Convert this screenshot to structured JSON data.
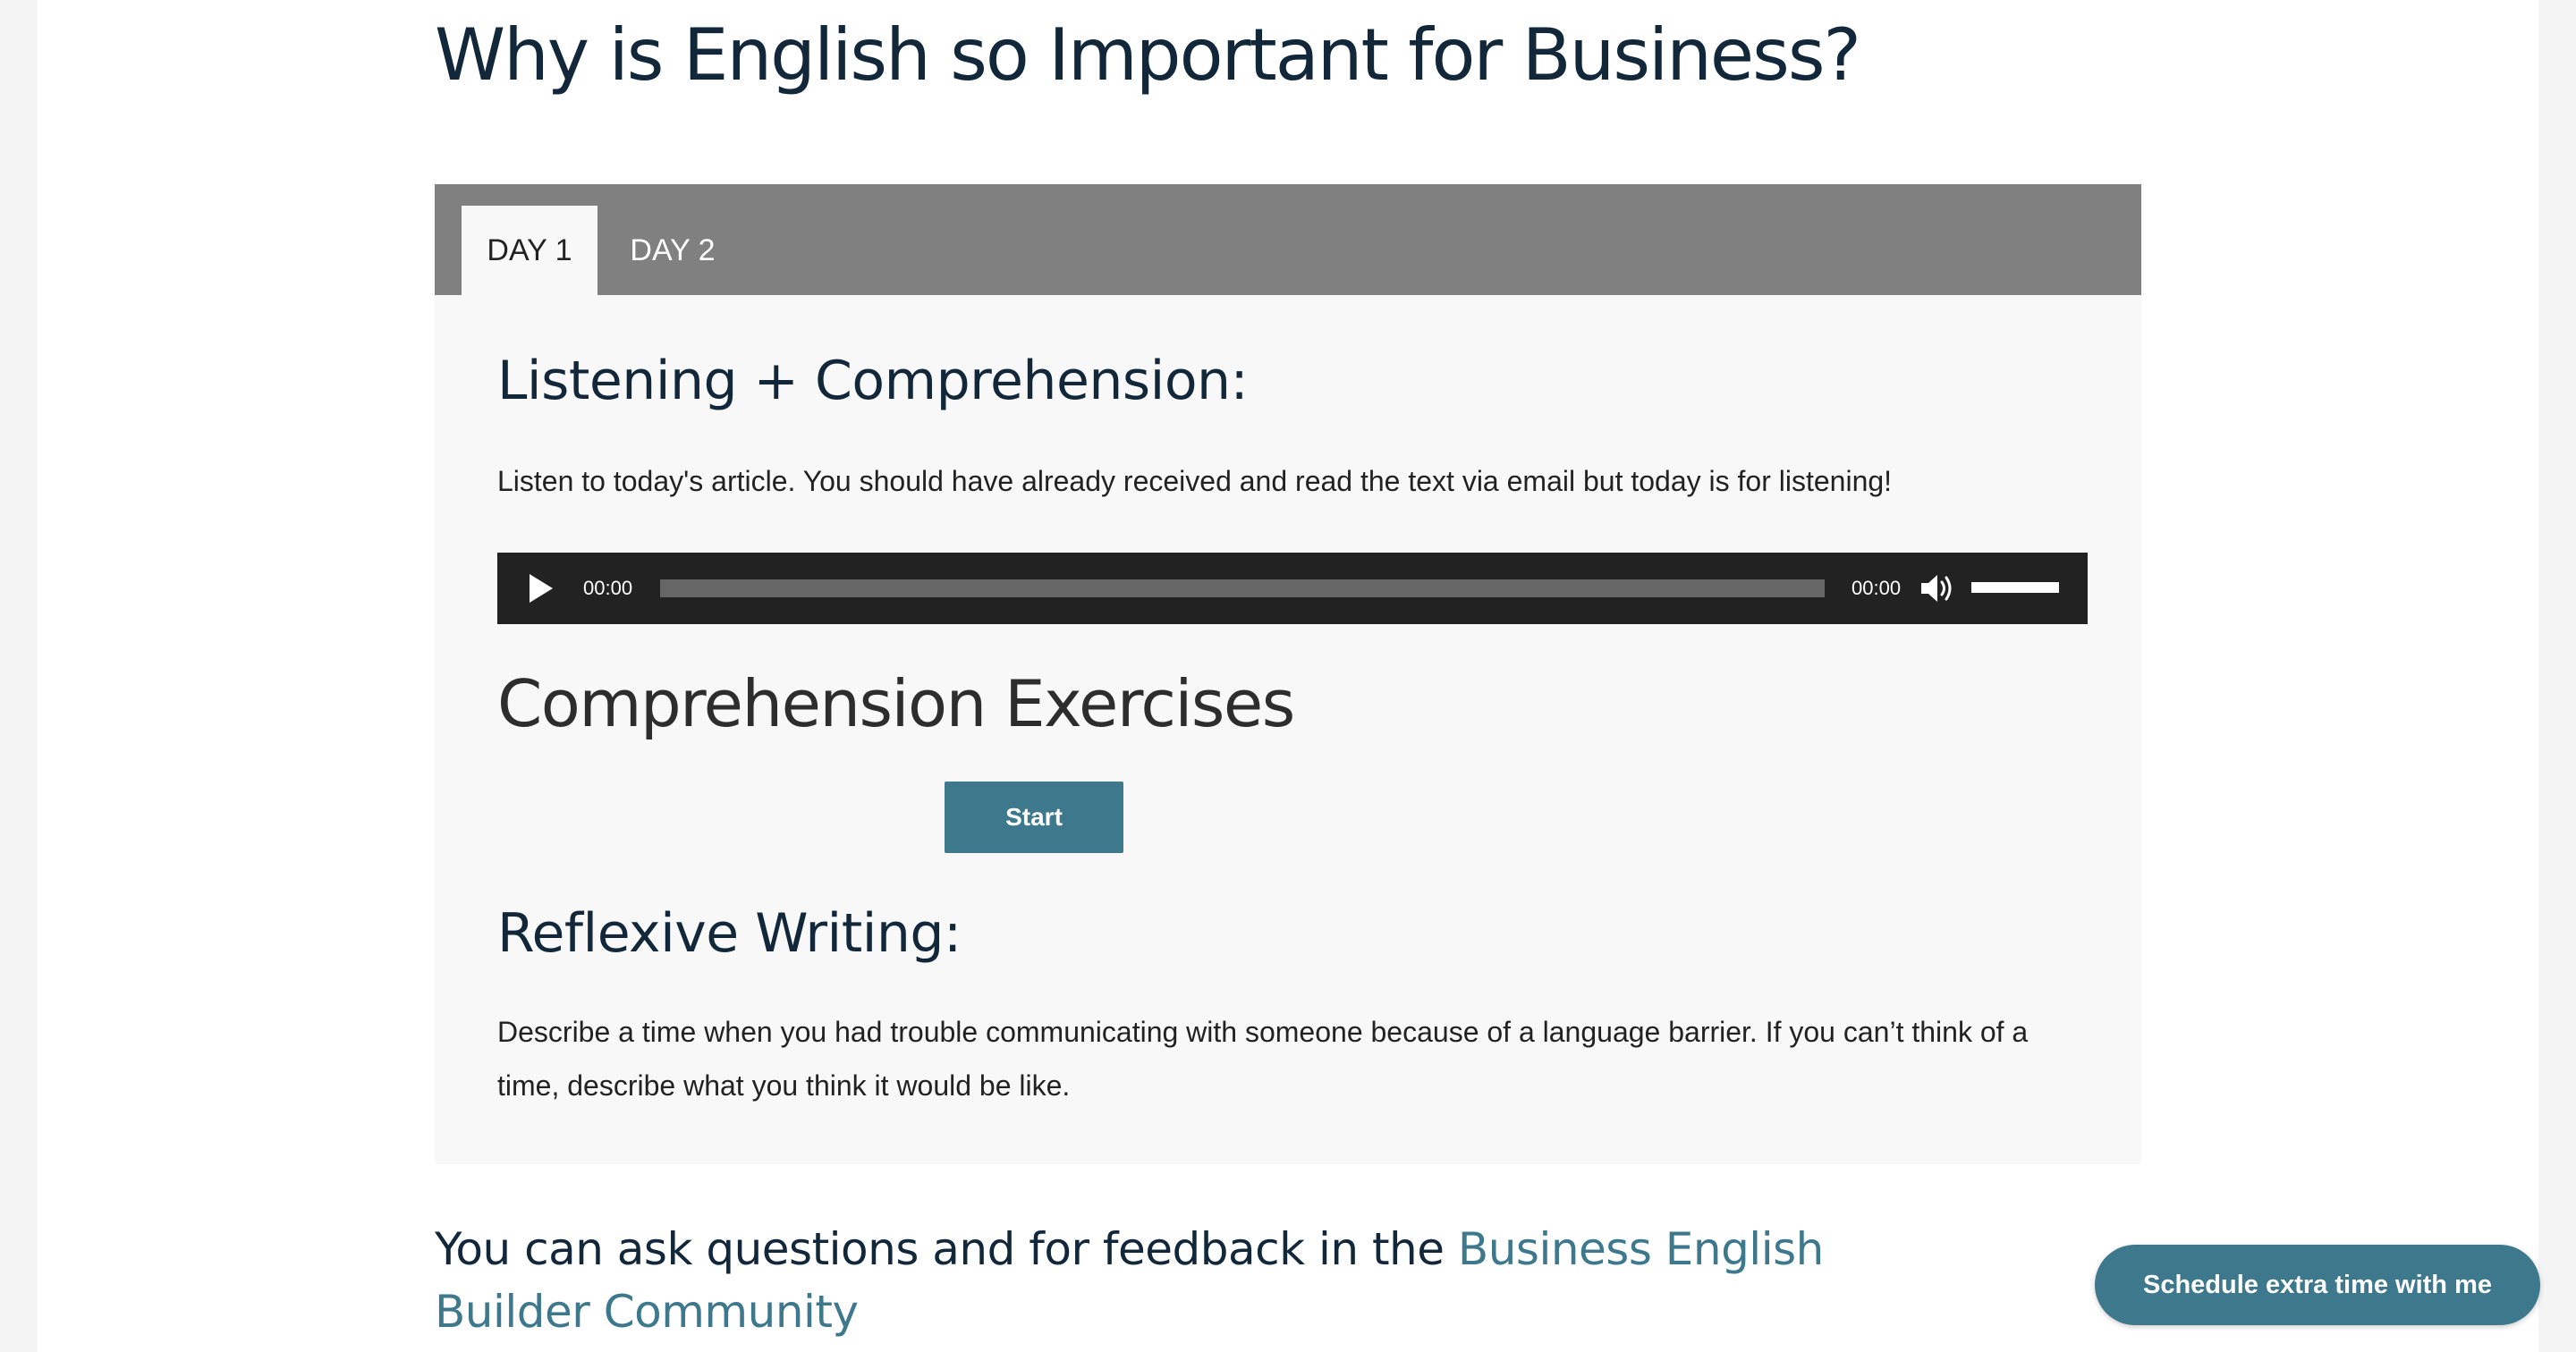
{
  "page": {
    "title": "Why is English so Important for Business?"
  },
  "tabs": [
    {
      "label": "DAY 1",
      "active": true
    },
    {
      "label": "DAY 2",
      "active": false
    }
  ],
  "listening": {
    "heading": "Listening + Comprehension:",
    "description": "Listen to today's article. You should have already received and read the text via email but today is for listening!"
  },
  "audio_player": {
    "current_time": "00:00",
    "duration": "00:00",
    "progress": 0,
    "volume": 1.0
  },
  "exercises": {
    "heading": "Comprehension Exercises",
    "start_label": "Start"
  },
  "reflexive": {
    "heading": "Reflexive Writing:",
    "prompt": "Describe a time when you had trouble communicating with someone because of a language barrier. If you can’t think of a time, describe what you think it would be like."
  },
  "community": {
    "text": "You can ask questions and for feedback in the ",
    "link_text": "Business English Builder Community"
  },
  "schedule": {
    "label": "Schedule extra time with me"
  },
  "colors": {
    "accent": "#3e788c",
    "heading": "#12283a",
    "tab_bar": "#808080",
    "player_bg": "#222222"
  },
  "icons": {
    "play": "play-icon",
    "volume": "speaker-icon"
  }
}
